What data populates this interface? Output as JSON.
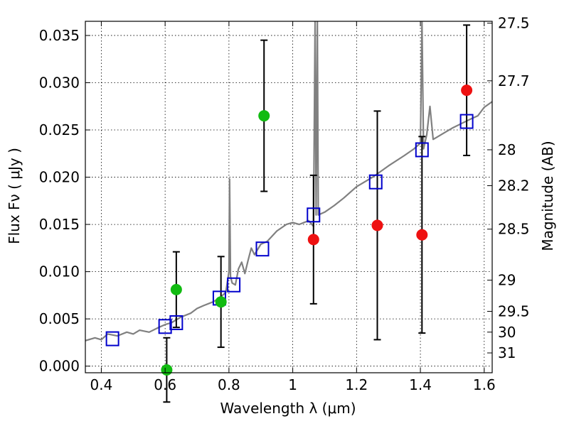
{
  "chart_data": {
    "type": "scatter",
    "xlabel": "Wavelength  λ (μm)",
    "ylabel": "Flux  Fν  ( μJy )",
    "y2label": "Magnitude (AB)",
    "xlim": [
      0.35,
      1.625
    ],
    "ylim": [
      -0.0007,
      0.0365
    ],
    "xticks": [
      0.4,
      0.6,
      0.8,
      1.0,
      1.2,
      1.4,
      1.6
    ],
    "xtick_labels": [
      "0.4",
      "0.6",
      "0.8",
      "1",
      "1.2",
      "1.4",
      "1.6"
    ],
    "yticks": [
      0.0,
      0.005,
      0.01,
      0.015,
      0.02,
      0.025,
      0.03,
      0.035
    ],
    "ytick_labels": [
      "0.000",
      "0.005",
      "0.010",
      "0.015",
      "0.020",
      "0.025",
      "0.030",
      "0.035"
    ],
    "y2ticks": [
      {
        "label": "27.5",
        "flux": 0.0363
      },
      {
        "label": "27.7",
        "flux": 0.0302
      },
      {
        "label": "28",
        "flux": 0.0229
      },
      {
        "label": "28.2",
        "flux": 0.0191
      },
      {
        "label": "28.5",
        "flux": 0.0145
      },
      {
        "label": "29",
        "flux": 0.0091
      },
      {
        "label": "29.5",
        "flux": 0.0058
      },
      {
        "label": "30",
        "flux": 0.0036
      },
      {
        "label": "31",
        "flux": 0.0014
      }
    ],
    "grid": true,
    "colors": {
      "spectrum": "#808080",
      "model_box": "#0000cc",
      "green_point": "#11bb11",
      "red_point": "#ee1111",
      "errorbar": "#000000"
    },
    "spectrum": {
      "x": [
        0.35,
        0.38,
        0.4,
        0.42,
        0.45,
        0.48,
        0.5,
        0.52,
        0.55,
        0.58,
        0.6,
        0.62,
        0.65,
        0.68,
        0.7,
        0.72,
        0.75,
        0.77,
        0.79,
        0.8,
        0.802,
        0.805,
        0.81,
        0.82,
        0.83,
        0.84,
        0.85,
        0.86,
        0.87,
        0.88,
        0.9,
        0.92,
        0.95,
        0.98,
        1.0,
        1.02,
        1.05,
        1.065,
        1.07,
        1.073,
        1.077,
        1.08,
        1.1,
        1.13,
        1.16,
        1.2,
        1.25,
        1.3,
        1.35,
        1.38,
        1.4,
        1.405,
        1.41,
        1.42,
        1.43,
        1.44,
        1.45,
        1.48,
        1.5,
        1.53,
        1.56,
        1.58,
        1.6,
        1.625
      ],
      "y": [
        0.0027,
        0.003,
        0.0028,
        0.0034,
        0.0032,
        0.0036,
        0.0034,
        0.0038,
        0.0036,
        0.0041,
        0.0044,
        0.0046,
        0.0052,
        0.0056,
        0.0061,
        0.0064,
        0.0068,
        0.0072,
        0.0078,
        0.01,
        0.0198,
        0.0095,
        0.0088,
        0.0086,
        0.0103,
        0.011,
        0.0098,
        0.0112,
        0.0125,
        0.0118,
        0.0129,
        0.0132,
        0.0143,
        0.015,
        0.0152,
        0.015,
        0.0154,
        0.0148,
        0.0365,
        0.016,
        0.0365,
        0.016,
        0.0163,
        0.017,
        0.0178,
        0.019,
        0.02,
        0.0212,
        0.0223,
        0.023,
        0.0236,
        0.0365,
        0.023,
        0.0245,
        0.0275,
        0.024,
        0.0242,
        0.0248,
        0.0252,
        0.0257,
        0.0262,
        0.0265,
        0.0274,
        0.028
      ]
    },
    "series": [
      {
        "marker": "open-square",
        "x": [
          0.435,
          0.6,
          0.635,
          0.77,
          0.815,
          0.905,
          1.065,
          1.26,
          1.405,
          1.545
        ],
        "y": [
          0.0029,
          0.0042,
          0.0046,
          0.0072,
          0.0086,
          0.0124,
          0.016,
          0.0195,
          0.0229,
          0.0259
        ]
      },
      {
        "marker": "green-circle",
        "x": [
          0.605,
          0.635,
          0.775,
          0.91
        ],
        "y": [
          -0.0004,
          0.0081,
          0.0068,
          0.0265
        ],
        "err": [
          0.0034,
          0.004,
          0.0048,
          0.008
        ]
      },
      {
        "marker": "red-circle",
        "x": [
          1.065,
          1.265,
          1.405,
          1.545
        ],
        "y": [
          0.0134,
          0.0149,
          0.0139,
          0.0292
        ],
        "err": [
          0.0068,
          0.0121,
          0.0104,
          0.0069
        ]
      }
    ]
  }
}
